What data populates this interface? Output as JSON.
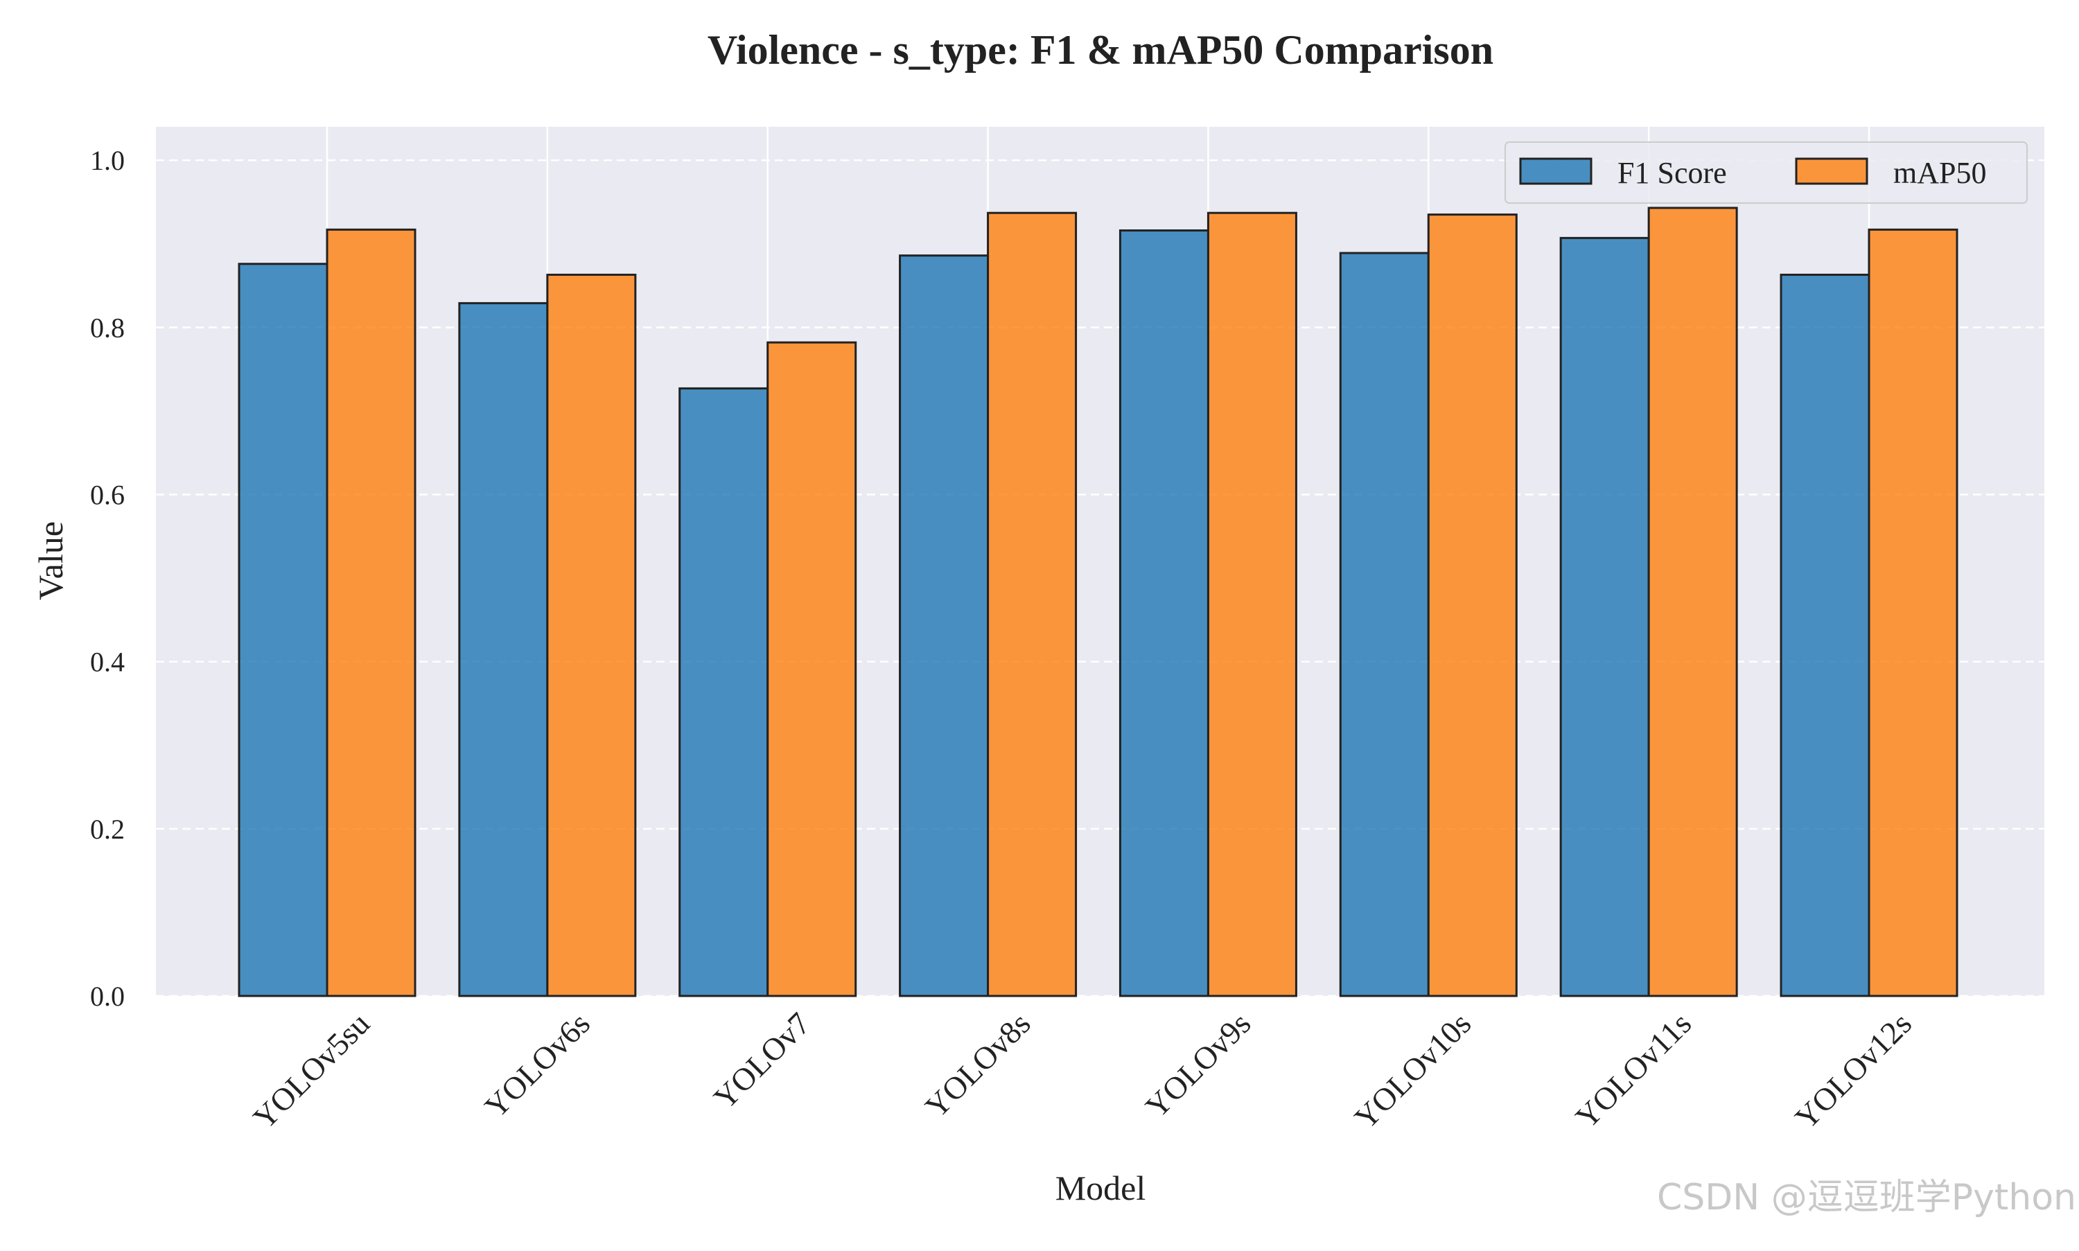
{
  "chart_data": {
    "type": "bar",
    "title": "Violence - s_type: F1 & mAP50 Comparison",
    "xlabel": "Model",
    "ylabel": "Value",
    "categories": [
      "YOLOv5su",
      "YOLOv6s",
      "YOLOv7",
      "YOLOv8s",
      "YOLOv9s",
      "YOLOv10s",
      "YOLOv11s",
      "YOLOv12s"
    ],
    "series": [
      {
        "name": "F1 Score",
        "color": "#1f77b4",
        "values": [
          0.876,
          0.829,
          0.727,
          0.886,
          0.916,
          0.889,
          0.907,
          0.863
        ]
      },
      {
        "name": "mAP50",
        "color": "#ff7f0e",
        "values": [
          0.917,
          0.863,
          0.782,
          0.937,
          0.937,
          0.935,
          0.943,
          0.917
        ]
      }
    ],
    "ylim": [
      0,
      1.04
    ],
    "yticks": [
      "0.0",
      "0.2",
      "0.4",
      "0.6",
      "0.8",
      "1.0"
    ],
    "grid": true,
    "legend_position": "top-right",
    "background": "#eaeaf2"
  },
  "watermark": "CSDN @逗逗班学Python"
}
